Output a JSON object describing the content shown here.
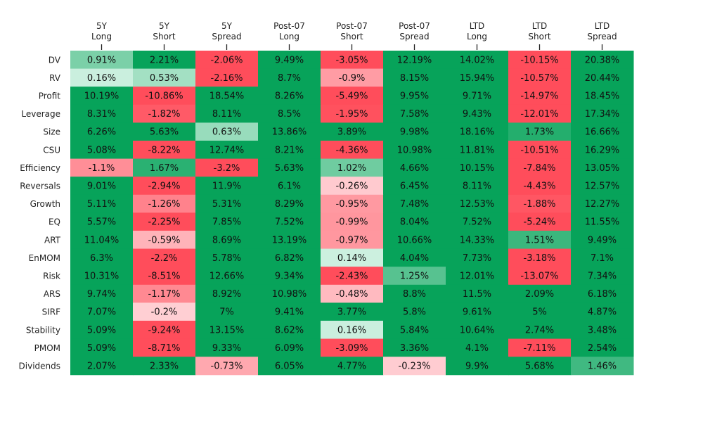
{
  "chart_data": {
    "type": "heatmap",
    "title": "",
    "columns": [
      [
        "5Y",
        "Long"
      ],
      [
        "5Y",
        "Short"
      ],
      [
        "5Y",
        "Spread"
      ],
      [
        "Post-07",
        "Long"
      ],
      [
        "Post-07",
        "Short"
      ],
      [
        "Post-07",
        "Spread"
      ],
      [
        "LTD",
        "Long"
      ],
      [
        "LTD",
        "Short"
      ],
      [
        "LTD",
        "Spread"
      ]
    ],
    "rows": [
      "DV",
      "RV",
      "Profit",
      "Leverage",
      "Size",
      "CSU",
      "Efficiency",
      "Reversals",
      "Growth",
      "EQ",
      "ART",
      "EnMOM",
      "Risk",
      "ARS",
      "SIRF",
      "Stability",
      "PMOM",
      "Dividends"
    ],
    "value_suffix": "%",
    "values": [
      [
        0.91,
        2.21,
        -2.06,
        9.49,
        -3.05,
        12.19,
        14.02,
        -10.15,
        20.38
      ],
      [
        0.16,
        0.53,
        -2.16,
        8.7,
        -0.9,
        8.15,
        15.94,
        -10.57,
        20.44
      ],
      [
        10.19,
        -10.86,
        18.54,
        8.26,
        -5.49,
        9.95,
        9.71,
        -14.97,
        18.45
      ],
      [
        8.31,
        -1.82,
        8.11,
        8.5,
        -1.95,
        7.58,
        9.43,
        -12.01,
        17.34
      ],
      [
        6.26,
        5.63,
        0.63,
        13.86,
        3.89,
        9.98,
        18.16,
        1.73,
        16.66
      ],
      [
        5.08,
        -8.22,
        12.74,
        8.21,
        -4.36,
        10.98,
        11.81,
        -10.51,
        16.29
      ],
      [
        -1.1,
        1.67,
        -3.2,
        5.63,
        1.02,
        4.66,
        10.15,
        -7.84,
        13.05
      ],
      [
        9.01,
        -2.94,
        11.9,
        6.1,
        -0.26,
        6.45,
        8.11,
        -4.43,
        12.57
      ],
      [
        5.11,
        -1.26,
        5.31,
        8.29,
        -0.95,
        7.48,
        12.53,
        -1.88,
        12.27
      ],
      [
        5.57,
        -2.25,
        7.85,
        7.52,
        -0.99,
        8.04,
        7.52,
        -5.24,
        11.55
      ],
      [
        11.04,
        -0.59,
        8.69,
        13.19,
        -0.97,
        10.66,
        14.33,
        1.51,
        9.49
      ],
      [
        6.3,
        -2.2,
        5.78,
        6.82,
        0.14,
        4.04,
        7.73,
        -3.18,
        7.1
      ],
      [
        10.31,
        -8.51,
        12.66,
        9.34,
        -2.43,
        1.25,
        12.01,
        -13.07,
        7.34
      ],
      [
        9.74,
        -1.17,
        8.92,
        10.98,
        -0.48,
        8.8,
        11.5,
        2.09,
        6.18
      ],
      [
        7.07,
        -0.2,
        7.0,
        9.41,
        3.77,
        5.8,
        9.61,
        5.0,
        4.87
      ],
      [
        5.09,
        -9.24,
        13.15,
        8.62,
        0.16,
        5.84,
        10.64,
        2.74,
        3.48
      ],
      [
        5.09,
        -8.71,
        9.33,
        6.09,
        -3.09,
        3.36,
        4.1,
        -7.11,
        2.54
      ],
      [
        2.07,
        2.33,
        -0.73,
        6.05,
        4.77,
        -0.23,
        9.9,
        5.68,
        1.46
      ]
    ],
    "color_scale": {
      "negative": "#ff4d5b",
      "center": "#ffffff",
      "positive": "#07a35a",
      "center_value": 0,
      "saturation_value": 2,
      "positive_tint": "#dbf6e9",
      "negative_tint": "#ffdde0"
    }
  }
}
